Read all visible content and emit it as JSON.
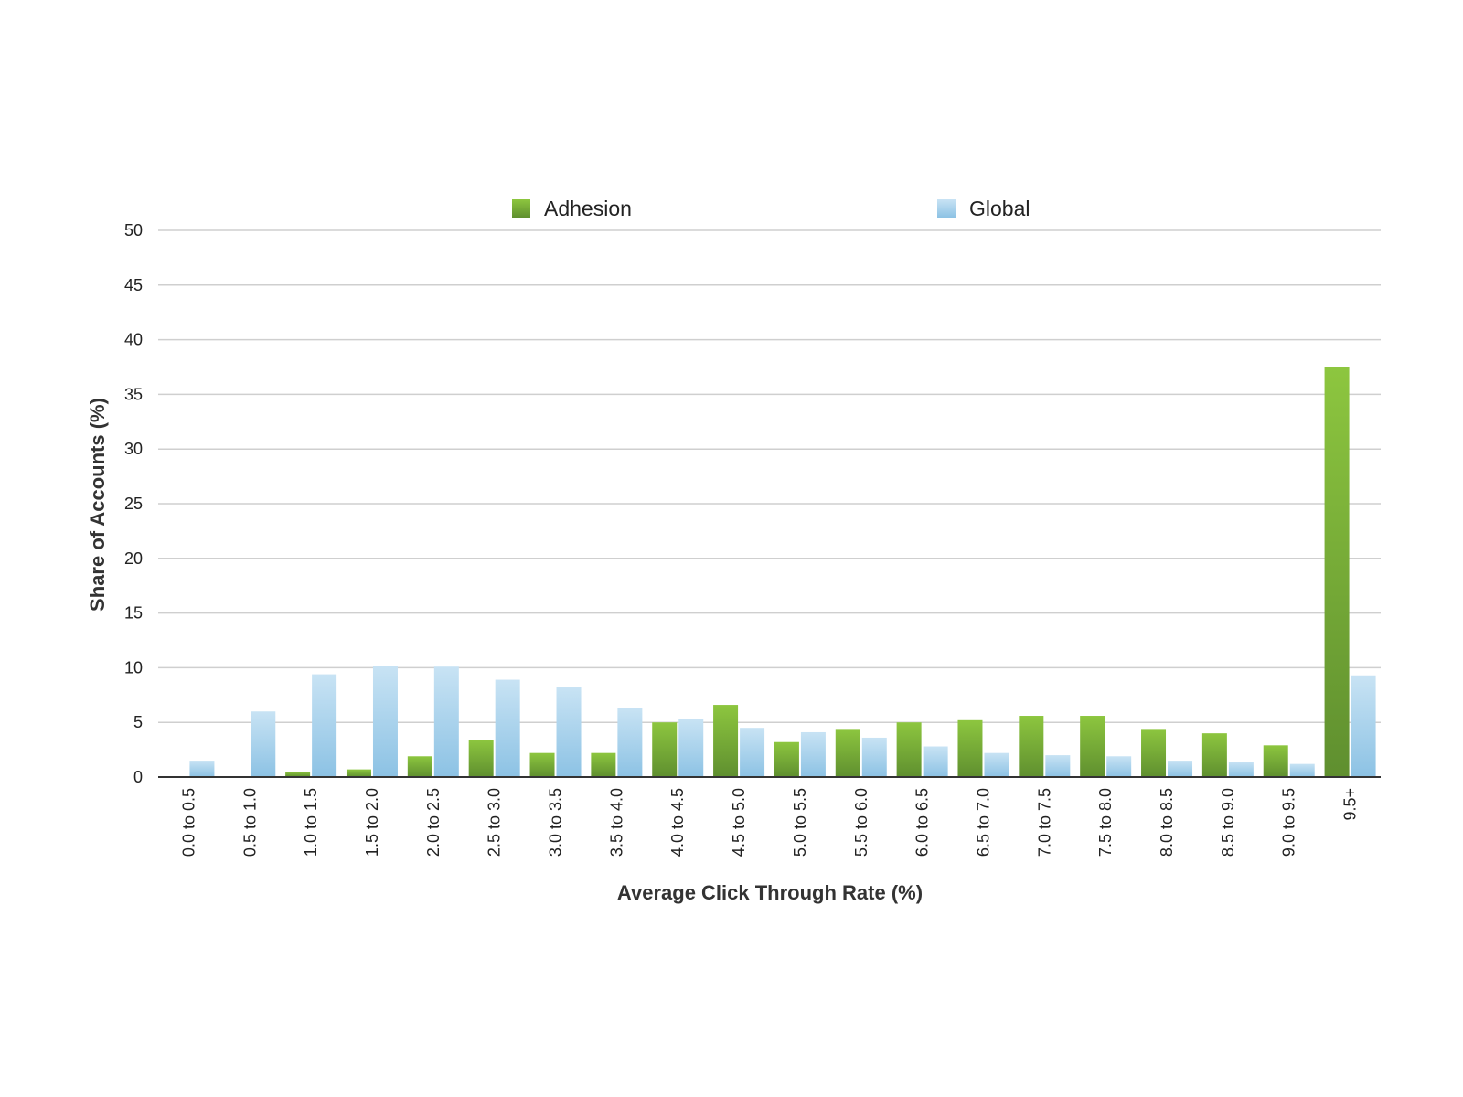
{
  "chart_data": {
    "type": "bar",
    "title": "",
    "xlabel": "Average Click Through Rate (%)",
    "ylabel": "Share of Accounts (%)",
    "ylim": [
      0,
      50
    ],
    "yticks": [
      "0",
      "5",
      "10",
      "15",
      "20",
      "25",
      "30",
      "35",
      "40",
      "45",
      "50"
    ],
    "grid": true,
    "legend_position": "top",
    "categories": [
      "0.0 to 0.5",
      "0.5 to 1.0",
      "1.0 to 1.5",
      "1.5 to 2.0",
      "2.0 to 2.5",
      "2.5 to 3.0",
      "3.0 to 3.5",
      "3.5 to 4.0",
      "4.0 to 4.5",
      "4.5 to 5.0",
      "5.0 to 5.5",
      "5.5 to 6.0",
      "6.0 to 6.5",
      "6.5 to 7.0",
      "7.0 to 7.5",
      "7.5 to 8.0",
      "8.0 to 8.5",
      "8.5 to 9.0",
      "9.0 to 9.5",
      "9.5+"
    ],
    "series": [
      {
        "name": "Adhesion",
        "color_top": "#8dc63f",
        "color_bottom": "#5f8f2f",
        "values": [
          0,
          0,
          0.5,
          0.7,
          1.9,
          3.4,
          2.2,
          2.2,
          5.0,
          6.6,
          3.2,
          4.4,
          5.0,
          5.2,
          5.6,
          5.6,
          4.4,
          4.0,
          2.9,
          37.5
        ]
      },
      {
        "name": "Global",
        "color_top": "#c8e3f4",
        "color_bottom": "#8cc2e4",
        "values": [
          1.5,
          6.0,
          9.4,
          10.2,
          10.1,
          8.9,
          8.2,
          6.3,
          5.3,
          4.5,
          4.1,
          3.6,
          2.8,
          2.2,
          2.0,
          1.9,
          1.5,
          1.4,
          1.2,
          9.3
        ]
      }
    ]
  }
}
